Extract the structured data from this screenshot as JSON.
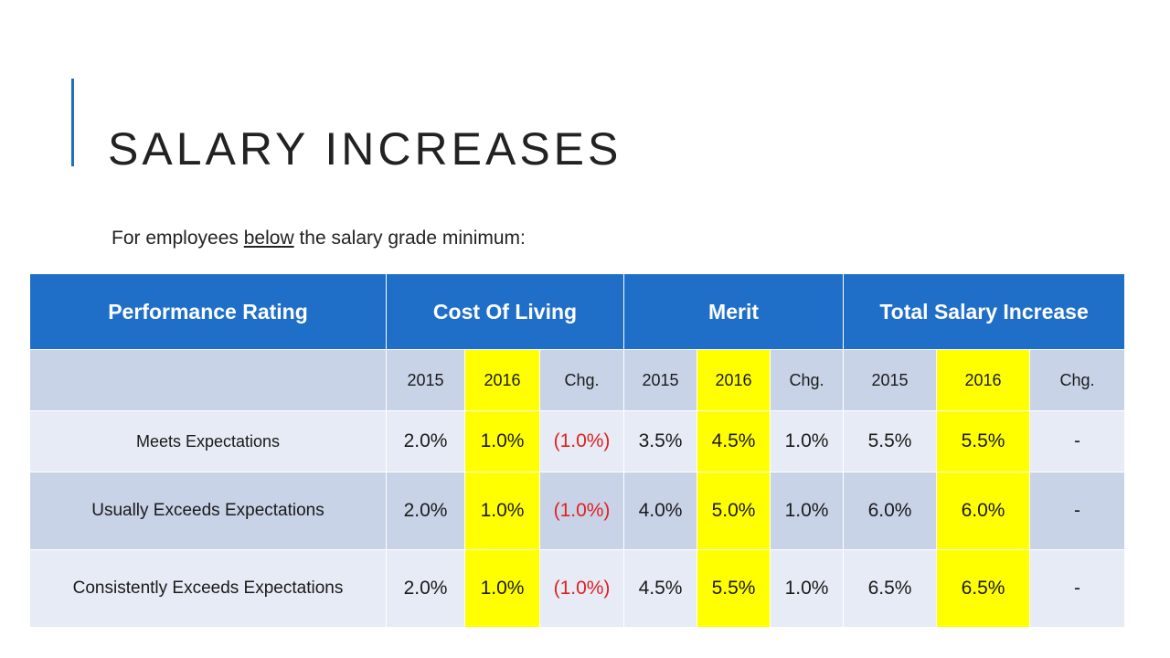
{
  "title": "SALARY INCREASES",
  "subtitle": {
    "prefix": "For employees ",
    "emphasis": "below",
    "suffix": " the salary grade minimum:"
  },
  "colors": {
    "accent": "#1f6fbf",
    "header_bg": "#1f6fc8",
    "highlight": "#ffff00",
    "negative": "#e02020"
  },
  "table": {
    "headers": [
      "Performance Rating",
      "Cost Of Living",
      "Merit",
      "Total Salary Increase"
    ],
    "subheaders": [
      "",
      "2015",
      "2016",
      "Chg.",
      "2015",
      "2016",
      "Chg.",
      "2015",
      "2016",
      "Chg."
    ],
    "rows": [
      {
        "rating": "Meets Expectations",
        "values": [
          "2.0%",
          "1.0%",
          "(1.0%)",
          "3.5%",
          "4.5%",
          "1.0%",
          "5.5%",
          "5.5%",
          "-"
        ]
      },
      {
        "rating": "Usually Exceeds Expectations",
        "values": [
          "2.0%",
          "1.0%",
          "(1.0%)",
          "4.0%",
          "5.0%",
          "1.0%",
          "6.0%",
          "6.0%",
          "-"
        ]
      },
      {
        "rating": "Consistently Exceeds Expectations",
        "values": [
          "2.0%",
          "1.0%",
          "(1.0%)",
          "4.5%",
          "5.5%",
          "1.0%",
          "6.5%",
          "6.5%",
          "-"
        ]
      }
    ]
  }
}
